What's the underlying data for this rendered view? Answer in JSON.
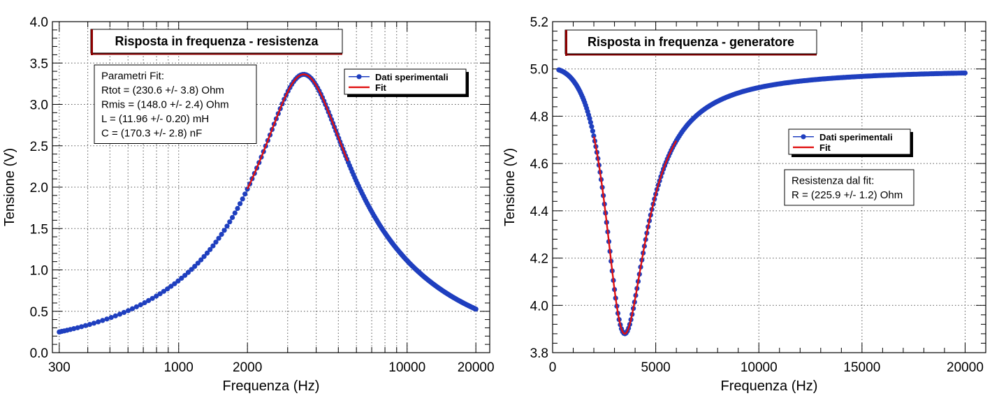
{
  "colors": {
    "data": "#1f3fbf",
    "fit": "#e01010",
    "shadow": "#000000",
    "title_accent": "#8b0000"
  },
  "chart_data": [
    {
      "type": "scatter",
      "title": "Risposta in frequenza - resistenza",
      "xlabel": "Frequenza (Hz)",
      "ylabel": "Tensione (V)",
      "xscale": "log",
      "xlim": [
        280,
        23000
      ],
      "ylim": [
        0,
        4
      ],
      "xticks": [
        300,
        1000,
        2000,
        10000,
        20000
      ],
      "xtick_labels": [
        "300",
        "1000",
        "2000",
        "10000",
        "20000"
      ],
      "yticks": [
        0,
        0.5,
        1,
        1.5,
        2,
        2.5,
        3,
        3.5,
        4
      ],
      "ytick_labels": [
        "0.0",
        "0.5",
        "1.0",
        "1.5",
        "2.0",
        "2.5",
        "3.0",
        "3.5",
        "4.0"
      ],
      "grid": true,
      "legend": {
        "placement": "top-right",
        "entries": [
          "Dati sperimentali",
          "Fit"
        ]
      },
      "stats_box": {
        "header": "Parametri Fit:",
        "lines": [
          "Rtot = (230.6 +/- 3.8) Ohm",
          "Rmis = (148.0 +/- 2.4) Ohm",
          "L = (11.96 +/- 0.20) mH",
          "C = (170.3 +/- 2.8) nF"
        ]
      },
      "model": {
        "kind": "rlc_resistor_voltage",
        "V0": 5.0,
        "Rtot": 230.6,
        "Rmis": 148.0,
        "L_mH": 11.96,
        "C_nF": 170.3
      },
      "series": [
        {
          "name": "Dati sperimentali",
          "x_range": [
            300,
            20000
          ],
          "n_points": 260
        },
        {
          "name": "Fit",
          "x_range": [
            2000,
            5500
          ]
        }
      ]
    },
    {
      "type": "scatter",
      "title": "Risposta in frequenza - generatore",
      "xlabel": "Frequenza (Hz)",
      "ylabel": "Tensione (V)",
      "xscale": "linear",
      "xlim": [
        0,
        21000
      ],
      "ylim": [
        3.8,
        5.2
      ],
      "xticks": [
        0,
        5000,
        10000,
        15000,
        20000
      ],
      "xtick_labels": [
        "0",
        "5000",
        "10000",
        "15000",
        "20000"
      ],
      "yticks": [
        3.8,
        4.0,
        4.2,
        4.4,
        4.6,
        4.8,
        5.0,
        5.2
      ],
      "ytick_labels": [
        "3.8",
        "4.0",
        "4.2",
        "4.4",
        "4.6",
        "4.8",
        "5.0",
        "5.2"
      ],
      "grid": true,
      "legend": {
        "placement": "center-right",
        "entries": [
          "Dati sperimentali",
          "Fit"
        ]
      },
      "stats_box": {
        "header": "Resistenza dal fit:",
        "lines": [
          "R = (225.9 +/- 1.2) Ohm"
        ]
      },
      "model": {
        "kind": "rlc_generator_voltage",
        "V0": 5.0,
        "Rtot": 230.6,
        "R_gen": 225.9,
        "L_mH": 11.96,
        "C_nF": 170.3
      },
      "series": [
        {
          "name": "Dati sperimentali",
          "x_range": [
            300,
            20000
          ],
          "n_points": 300
        },
        {
          "name": "Fit",
          "x_range": [
            2000,
            6000
          ]
        }
      ]
    }
  ]
}
